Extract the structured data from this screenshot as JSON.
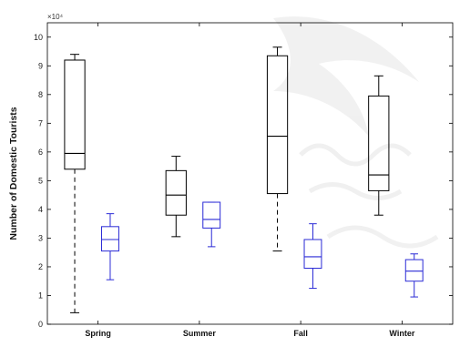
{
  "chart_data": {
    "type": "box",
    "ylabel": "Number of Domestic Tourists",
    "y_multiplier": "×10⁴",
    "ylim": [
      0,
      10.5
    ],
    "yticks": [
      0,
      1,
      2,
      3,
      4,
      5,
      6,
      7,
      8,
      9,
      10
    ],
    "grid": false,
    "categories": [
      "Spring",
      "Summer",
      "Fall",
      "Winter"
    ],
    "series": [
      {
        "color": "#000000",
        "boxes": [
          {
            "category": "Spring",
            "min": 0.4,
            "q1": 5.4,
            "median": 5.95,
            "q3": 9.2,
            "max": 9.4,
            "lower_whisker_style": "dashed"
          },
          {
            "category": "Summer",
            "min": 3.05,
            "q1": 3.8,
            "median": 4.5,
            "q3": 5.35,
            "max": 5.85
          },
          {
            "category": "Fall",
            "min": 2.55,
            "q1": 4.55,
            "median": 6.55,
            "q3": 9.35,
            "max": 9.65,
            "lower_whisker_style": "dashed"
          },
          {
            "category": "Winter",
            "min": 3.8,
            "q1": 4.65,
            "median": 5.2,
            "q3": 7.95,
            "max": 8.65
          }
        ]
      },
      {
        "color": "#2a2ad6",
        "boxes": [
          {
            "category": "Spring",
            "min": 1.55,
            "q1": 2.55,
            "median": 2.95,
            "q3": 3.4,
            "max": 3.85
          },
          {
            "category": "Summer",
            "min": 2.7,
            "q1": 3.35,
            "median": 3.65,
            "q3": 4.25,
            "max": 4.25
          },
          {
            "category": "Fall",
            "min": 1.25,
            "q1": 1.95,
            "median": 2.35,
            "q3": 2.95,
            "max": 3.5
          },
          {
            "category": "Winter",
            "min": 0.95,
            "q1": 1.5,
            "median": 1.85,
            "q3": 2.25,
            "max": 2.45
          }
        ]
      }
    ]
  }
}
